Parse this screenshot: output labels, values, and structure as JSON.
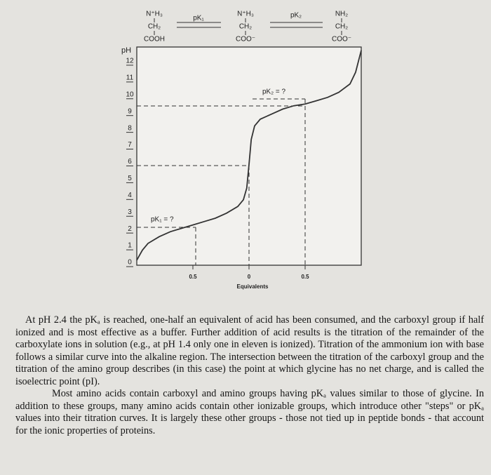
{
  "chart_data": {
    "type": "line",
    "species": [
      [
        "N⁺H₃",
        "CH₂",
        "COOH"
      ],
      [
        "N⁺H₃",
        "CH₂",
        "COO⁻"
      ],
      [
        "NH₂",
        "CH₂",
        "COO⁻"
      ]
    ],
    "arrow_labels": [
      "pK₁",
      "pK₂"
    ],
    "y_label": "pH",
    "x_label": "Equivalents",
    "annotations": [
      "pK₁ = ?",
      "pK₂ = ?"
    ],
    "x": [
      -1,
      -0.95,
      -0.9,
      -0.8,
      -0.7,
      -0.6,
      -0.5,
      -0.4,
      -0.3,
      -0.2,
      -0.1,
      -0.05,
      -0.02,
      0,
      0.02,
      0.05,
      0.1,
      0.2,
      0.3,
      0.4,
      0.5,
      0.6,
      0.7,
      0.8,
      0.9,
      0.95,
      1
    ],
    "values": [
      0.3,
      0.9,
      1.3,
      1.7,
      2.0,
      2.2,
      2.4,
      2.6,
      2.8,
      3.1,
      3.5,
      3.9,
      4.6,
      6.0,
      7.5,
      8.3,
      8.7,
      9.0,
      9.3,
      9.5,
      9.6,
      9.8,
      10.0,
      10.3,
      10.8,
      11.5,
      12.8
    ],
    "color": "#333333",
    "xlim": [
      -1,
      1
    ],
    "ylim": [
      0,
      13
    ],
    "xticks": [
      {
        "value": -0.5,
        "label": "0.5"
      },
      0,
      {
        "value": 0.5,
        "label": "0.5"
      }
    ],
    "yticks": [
      0,
      1,
      2,
      3,
      4,
      5,
      6,
      7,
      8,
      9,
      10,
      11,
      12
    ]
  },
  "text": {
    "paragraphs": [
      "At pH 2.4 the pKₐ is reached, one-half an equivalent of acid has been consumed, and the carboxyl group if half ionized and is most effective as a buffer. Further addition of acid results is the titration of the remainder of the carboxylate ions in solution (e.g., at pH 1.4 only one in eleven is ionized). Titration of the ammonium ion with base follows a similar curve into the alkaline region. The intersection between the titration of the carboxyl group and the titration of the amino group describes (in this case) the point at which glycine has no net charge, and is called the isoelectric point (pI).",
      "Most amino acids contain carboxyl and amino groups having pKₐ values similar to those of glycine. In addition to these groups, many amino acids contain other ionizable groups, which introduce other \"steps\" or pKₐ values into their titration curves. It is largely these other groups - those not tied up in peptide bonds - that account for the ionic properties of proteins."
    ]
  }
}
